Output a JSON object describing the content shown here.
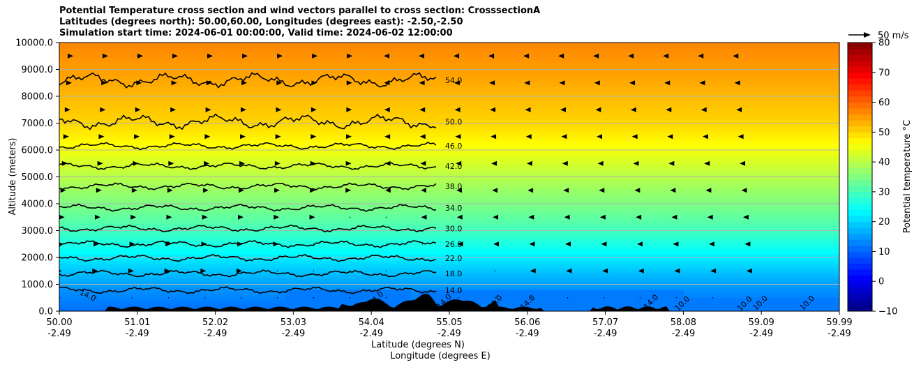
{
  "chart_data": {
    "type": "contour",
    "title_lines": [
      "Potential Temperature cross section and wind vectors parallel to cross section: CrosssectionA",
      "Latitudes (degrees north): 50.00,60.00, Longitudes (degrees east): -2.50,-2.50",
      "Simulation start time: 2024-06-01 00:00:00, Valid time: 2024-06-02 12:00:00"
    ],
    "xlabel_lat": "Latitude (degrees N)",
    "xlabel_lon": "Longitude (degrees E)",
    "ylabel": "Altitude (meters)",
    "colorbar_label": "Potential temperature °C",
    "wind_key_label": "50 m/s",
    "xlim": [
      50.0,
      59.99
    ],
    "ylim": [
      0,
      10000
    ],
    "x_tick_lat": [
      "50.00",
      "51.01",
      "52.02",
      "53.03",
      "54.04",
      "55.05",
      "56.06",
      "57.07",
      "58.08",
      "59.09",
      "59.99"
    ],
    "x_tick_lon": [
      "-2.49",
      "-2.49",
      "-2.49",
      "-2.49",
      "-2.49",
      "-2.49",
      "-2.49",
      "-2.49",
      "-2.49",
      "-2.49",
      "-2.49"
    ],
    "y_ticks": [
      "0.0",
      "1000.0",
      "2000.0",
      "3000.0",
      "4000.0",
      "5000.0",
      "6000.0",
      "7000.0",
      "8000.0",
      "9000.0",
      "10000.0"
    ],
    "colorbar_range": [
      -10,
      80
    ],
    "colorbar_ticks": [
      "−10",
      "0",
      "10",
      "20",
      "30",
      "40",
      "50",
      "60",
      "70",
      "80"
    ],
    "colormap": "jet",
    "contours": [
      {
        "level": 14.0,
        "label": "14.0",
        "altitude_m": 780
      },
      {
        "level": 18.0,
        "label": "18.0",
        "altitude_m": 1400
      },
      {
        "level": 22.0,
        "label": "22.0",
        "altitude_m": 1980
      },
      {
        "level": 26.0,
        "label": "26.0",
        "altitude_m": 2500
      },
      {
        "level": 30.0,
        "label": "30.0",
        "altitude_m": 3080
      },
      {
        "level": 34.0,
        "label": "34.0",
        "altitude_m": 3850
      },
      {
        "level": 38.0,
        "label": "38.0",
        "altitude_m": 4650
      },
      {
        "level": 42.0,
        "label": "42.0",
        "altitude_m": 5400
      },
      {
        "level": 46.0,
        "label": "46.0",
        "altitude_m": 6150
      },
      {
        "level": 50.0,
        "label": "50.0",
        "altitude_m": 7050
      },
      {
        "level": 54.0,
        "label": "54.0",
        "altitude_m": 8600
      }
    ],
    "lower_contour_labels": [
      "14.0",
      "14.0",
      "14.0",
      "14.0",
      "14.0",
      "14.0",
      "10.0",
      "10.0",
      "10.0",
      "10.0"
    ],
    "grid": "horizontal"
  }
}
